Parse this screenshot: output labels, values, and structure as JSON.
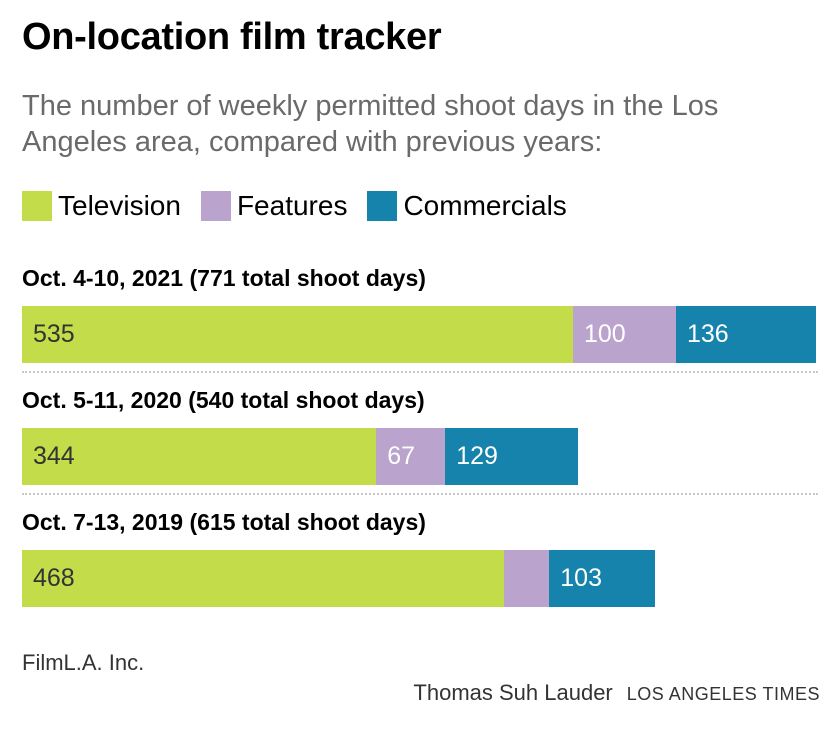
{
  "title": "On-location film tracker",
  "subtitle": "The number of weekly permitted shoot days in the Los Angeles area, compared with previous years:",
  "source": "FilmL.A. Inc.",
  "credit": {
    "author": "Thomas Suh Lauder",
    "org": "LOS ANGELES TIMES"
  },
  "colors": {
    "Television": "#c3dc4a",
    "Features": "#baa3cc",
    "Commercials": "#1583ab"
  },
  "chart_data": {
    "type": "bar",
    "orientation": "horizontal",
    "stacked": true,
    "legend_position": "top-left",
    "series_names": [
      "Television",
      "Features",
      "Commercials"
    ],
    "groups": [
      {
        "label": "Oct. 4-10, 2021 (771 total shoot days)",
        "values": [
          535,
          100,
          136
        ],
        "labels": [
          "535",
          "100",
          "136"
        ]
      },
      {
        "label": "Oct. 5-11, 2020 (540 total shoot days)",
        "values": [
          344,
          67,
          129
        ],
        "labels": [
          "344",
          "67",
          "129"
        ]
      },
      {
        "label": "Oct. 7-13, 2019 (615 total shoot days)",
        "values": [
          468,
          44,
          103
        ],
        "labels": [
          "468",
          "",
          "103"
        ]
      }
    ],
    "xlim": [
      0,
      771
    ],
    "grid": false
  }
}
